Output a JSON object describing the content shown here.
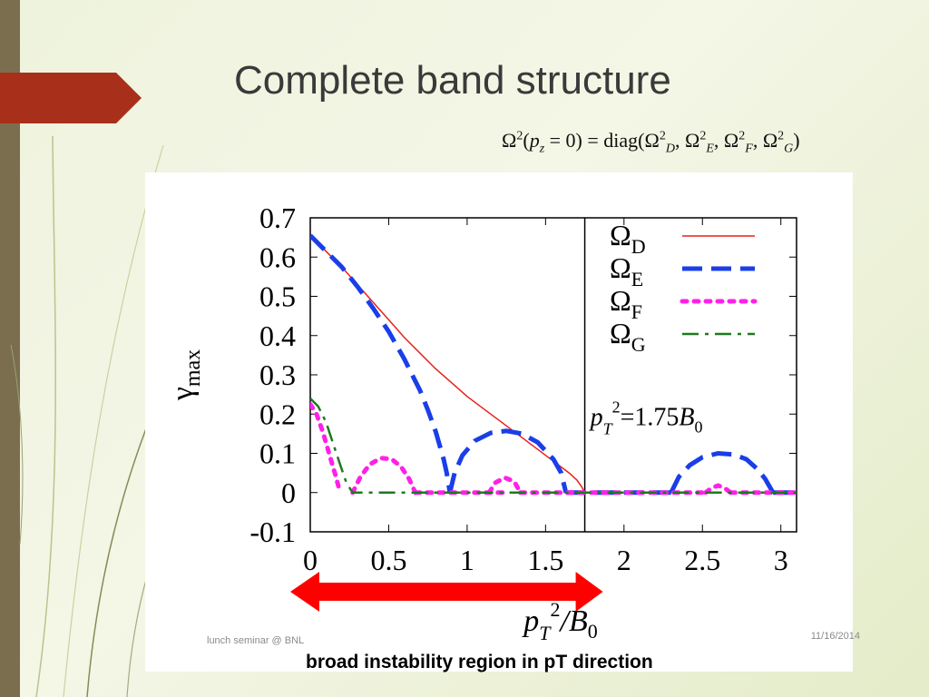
{
  "slide": {
    "title": "Complete band structure",
    "footer_left": "lunch seminar @ BNL",
    "footer_right": "11/16/2014",
    "caption": "broad instability region in pT direction",
    "formula": {
      "lhs": "Ω²(p_z = 0) = diag(Ω²_D, Ω²_E, Ω²_F, Ω²_G)"
    },
    "colors": {
      "accent_red": "#a8301a",
      "left_bar": "#7a6e4f",
      "arrow": "#ff0000"
    }
  },
  "chart_data": {
    "type": "line",
    "xlabel": "pT²/B0",
    "ylabel": "γmax",
    "xlim": [
      0,
      3.1
    ],
    "ylim": [
      -0.1,
      0.7
    ],
    "x_ticks": [
      "0",
      "0.5",
      "1",
      "1.5",
      "2",
      "2.5",
      "3"
    ],
    "y_ticks": [
      "0.7",
      "0.6",
      "0.5",
      "0.4",
      "0.3",
      "0.2",
      "0.1",
      "0",
      "-0.1"
    ],
    "legend_position": "top-right",
    "annotation": {
      "text": "pT²=1.75B0",
      "vline_x": 1.75
    },
    "series": [
      {
        "name": "ΩD",
        "color": "#e8201a",
        "style": "solid",
        "x": [
          0,
          0.1,
          0.2,
          0.3,
          0.4,
          0.5,
          0.6,
          0.7,
          0.8,
          0.9,
          1.0,
          1.1,
          1.2,
          1.3,
          1.4,
          1.5,
          1.6,
          1.65,
          1.7,
          1.73,
          1.75
        ],
        "y": [
          0.655,
          0.615,
          0.575,
          0.53,
          0.485,
          0.44,
          0.395,
          0.355,
          0.315,
          0.28,
          0.245,
          0.215,
          0.185,
          0.155,
          0.125,
          0.095,
          0.065,
          0.05,
          0.032,
          0.015,
          0
        ]
      },
      {
        "name": "ΩE",
        "color": "#1a3ee8",
        "style": "dashed",
        "segments": [
          {
            "x": [
              0,
              0.1,
              0.2,
              0.3,
              0.4,
              0.5,
              0.6,
              0.7,
              0.75,
              0.8,
              0.85,
              0.87,
              0.89
            ],
            "y": [
              0.655,
              0.615,
              0.575,
              0.525,
              0.47,
              0.41,
              0.34,
              0.26,
              0.21,
              0.155,
              0.085,
              0.05,
              0
            ]
          },
          {
            "x": [
              0.89,
              0.92,
              0.97,
              1.05,
              1.15,
              1.25,
              1.35,
              1.45,
              1.55,
              1.6,
              1.63
            ],
            "y": [
              0,
              0.05,
              0.095,
              0.132,
              0.152,
              0.157,
              0.15,
              0.128,
              0.085,
              0.05,
              0
            ]
          },
          {
            "x": [
              1.63,
              1.75,
              2.0,
              2.3
            ],
            "y": [
              0,
              0,
              0,
              0
            ]
          },
          {
            "x": [
              2.3,
              2.35,
              2.42,
              2.5,
              2.6,
              2.7,
              2.78,
              2.85,
              2.9,
              2.95
            ],
            "y": [
              0,
              0.04,
              0.07,
              0.09,
              0.1,
              0.097,
              0.085,
              0.06,
              0.035,
              0
            ]
          },
          {
            "x": [
              2.95,
              3.1
            ],
            "y": [
              0,
              0
            ]
          }
        ]
      },
      {
        "name": "ΩF",
        "color": "#ff20e8",
        "style": "dotted",
        "segments": [
          {
            "x": [
              0,
              0.04,
              0.08,
              0.12,
              0.16,
              0.19
            ],
            "y": [
              0.225,
              0.2,
              0.155,
              0.1,
              0.045,
              0
            ]
          },
          {
            "x": [
              0.27,
              0.32,
              0.38,
              0.45,
              0.52,
              0.58,
              0.63,
              0.67
            ],
            "y": [
              0,
              0.04,
              0.072,
              0.088,
              0.085,
              0.065,
              0.035,
              0
            ]
          },
          {
            "x": [
              0.67,
              1.25
            ],
            "y": [
              0,
              0
            ]
          },
          {
            "x": [
              1.14,
              1.18,
              1.24,
              1.3,
              1.34
            ],
            "y": [
              0,
              0.025,
              0.038,
              0.028,
              0
            ]
          },
          {
            "x": [
              1.34,
              2.52
            ],
            "y": [
              0,
              0
            ]
          },
          {
            "x": [
              2.52,
              2.56,
              2.6,
              2.64,
              2.68
            ],
            "y": [
              0,
              0.012,
              0.018,
              0.012,
              0
            ]
          },
          {
            "x": [
              2.68,
              3.1
            ],
            "y": [
              0,
              0
            ]
          }
        ]
      },
      {
        "name": "ΩG",
        "color": "#1e7a1e",
        "style": "dashdot",
        "x": [
          0,
          0.05,
          0.1,
          0.15,
          0.2,
          0.23,
          0.27,
          1.0,
          2.0,
          3.1
        ],
        "y": [
          0.24,
          0.22,
          0.18,
          0.12,
          0.06,
          0.025,
          0,
          0,
          0,
          0
        ]
      }
    ]
  }
}
